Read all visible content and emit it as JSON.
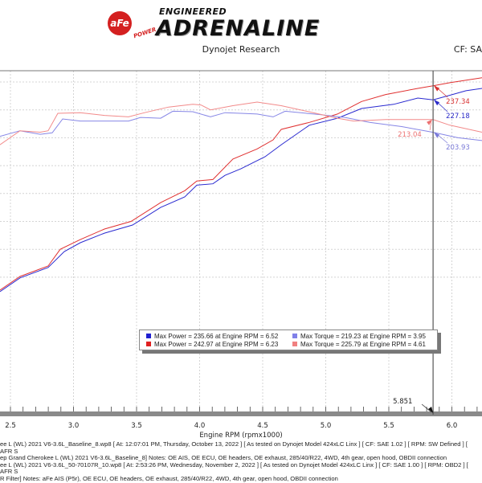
{
  "header": {
    "logo_text": {
      "brand": "aFe",
      "power": "POWER",
      "engineered": "ENGINEERED",
      "adrenaline": "ADRENALINE"
    },
    "subtitle": "Dynojet Research",
    "cf_label": "CF: SA"
  },
  "legend": {
    "items": [
      {
        "text": "Max Power = 235.66 at Engine RPM = 6.52",
        "color": "#1f1fd0"
      },
      {
        "text": "Max Torque = 219.23 at Engine RPM = 3.95",
        "color": "#8080e8"
      },
      {
        "text": "Max Power = 242.97 at Engine RPM = 6.23",
        "color": "#e02020"
      },
      {
        "text": "Max Torque = 225.79 at Engine RPM = 4.61",
        "color": "#f08080"
      }
    ]
  },
  "footer": {
    "lines": [
      "ee L (WL) 2021 V6-3.6L_Baseline_8.wp8 [ At: 12:07:01 PM, Thursday, October 13, 2022 ] [ As tested on Dynojet Model 424xLC Linx ] [ CF: SAE 1.02 ] [ RPM: SW Defined ] [ AFR S",
      "ep Grand Cherokee L (WL) 2021 V6-3.6L_Baseline_8]  Notes: OE AIS, OE ECU, OE headers, OE exhaust, 285/40/R22, 4WD, 4th gear, open hood, OBDII connection",
      "ee L (WL) 2021 V6-3.6L_50-70107R_10.wp8 [ At: 2:53:26 PM, Wednesday, November 2, 2022 ] [ As tested on Dynojet Model 424xLC Linx ] [ CF: SAE 1.00 ] [ RPM: OBD2 ] [ AFR S",
      "R Filter]  Notes: aFe AIS (P5r), OE ECU, OE headers, OE exhaust, 285/40/R22, 4WD, 4th gear, open hood, OBDII connection"
    ]
  },
  "chart_data": {
    "type": "line",
    "xlabel": "Engine RPM (rpmx1000)",
    "ylabel": "",
    "x_ticks": [
      "2.5",
      "3.0",
      "3.5",
      "4.0",
      "4.5",
      "5.0",
      "5.5",
      "6.0"
    ],
    "xlim": [
      2.42,
      6.24
    ],
    "ylim": [
      84,
      248
    ],
    "grid": true,
    "cursor": {
      "rpm": 5.851,
      "label": "5.851"
    },
    "cursor_values": [
      {
        "series": "baseline_power",
        "value": "227.18",
        "color": "#2a2ac8"
      },
      {
        "series": "afe_power",
        "value": "237.34",
        "color": "#d83030"
      },
      {
        "series": "baseline_torque",
        "value": "203.93",
        "color": "#7a7ad8"
      },
      {
        "series": "afe_torque",
        "value": "213.04",
        "color": "#ec7070"
      }
    ],
    "series": [
      {
        "id": "baseline_power",
        "color": "#2a2ad0",
        "x": [
          2.417,
          2.576,
          2.799,
          2.927,
          3.054,
          3.245,
          3.468,
          3.691,
          3.882,
          3.978,
          4.105,
          4.201,
          4.328,
          4.519,
          4.647,
          4.87,
          5.093,
          5.284,
          5.539,
          5.73,
          5.851,
          5.985,
          6.112,
          6.239
        ],
        "y": [
          89.6,
          99.5,
          107,
          118.4,
          124.7,
          131.6,
          137.4,
          150,
          157.6,
          166,
          167,
          173,
          177.8,
          186.4,
          195,
          209,
          214,
          221,
          224,
          228.5,
          227.2,
          230.5,
          233.7,
          235.4
        ]
      },
      {
        "id": "afe_power",
        "color": "#e03030",
        "x": [
          2.417,
          2.576,
          2.799,
          2.895,
          3.054,
          3.245,
          3.456,
          3.691,
          3.882,
          3.978,
          4.105,
          4.264,
          4.456,
          4.583,
          4.647,
          4.87,
          5.093,
          5.284,
          5.475,
          5.73,
          5.851,
          5.985,
          6.239
        ],
        "y": [
          90.7,
          100.5,
          108,
          120,
          127,
          134.5,
          140,
          153.5,
          162,
          169,
          170,
          184.7,
          192,
          198.5,
          206,
          211,
          217,
          226,
          231,
          235.4,
          237.3,
          239.5,
          243
        ]
      },
      {
        "id": "baseline_torque",
        "color": "#8686e6",
        "x": [
          2.417,
          2.576,
          2.736,
          2.831,
          2.914,
          3.054,
          3.245,
          3.436,
          3.532,
          3.691,
          3.787,
          3.946,
          4.086,
          4.201,
          4.328,
          4.456,
          4.583,
          4.678,
          4.965,
          5.156,
          5.347,
          5.602,
          5.851,
          6.048,
          6.239
        ],
        "y": [
          201,
          205,
          202.5,
          203.5,
          213.5,
          212,
          212,
          212,
          214.6,
          214,
          219,
          218.7,
          215,
          218,
          217.5,
          217,
          215,
          219,
          216.5,
          214.5,
          211,
          208,
          203.9,
          200,
          198
        ]
      },
      {
        "id": "afe_torque",
        "color": "#f28a8a",
        "x": [
          2.417,
          2.576,
          2.736,
          2.799,
          2.876,
          3.054,
          3.245,
          3.436,
          3.564,
          3.755,
          3.946,
          4.01,
          4.086,
          4.264,
          4.456,
          4.647,
          4.901,
          5.093,
          5.22,
          5.475,
          5.73,
          5.851,
          5.985,
          6.239
        ],
        "y": [
          195,
          205,
          204,
          205,
          217.5,
          218,
          216,
          215,
          218,
          222,
          224,
          223.5,
          220,
          223,
          225.6,
          223,
          218,
          214,
          212,
          213,
          213,
          213,
          209,
          204
        ]
      }
    ]
  }
}
